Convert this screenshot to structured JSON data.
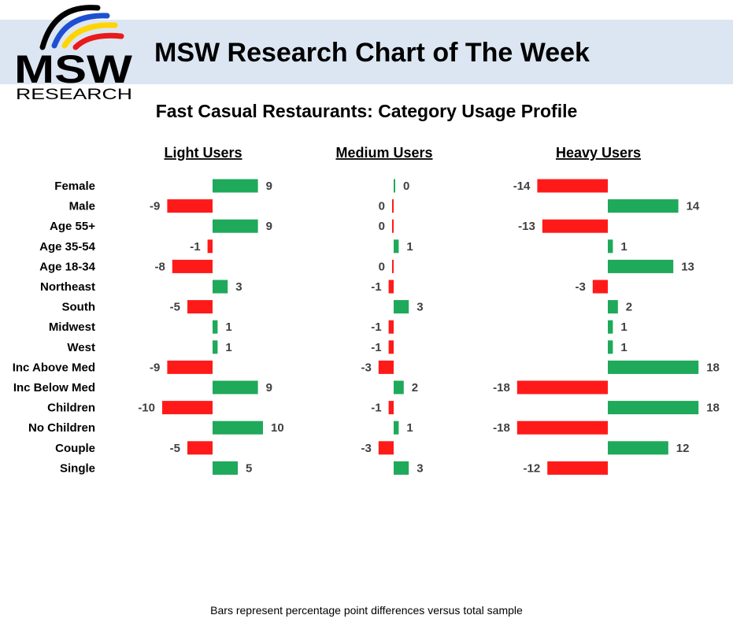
{
  "header": {
    "title": "MSW Research Chart of The Week",
    "logo_text": "MSW",
    "logo_subtext": "RESEARCH"
  },
  "footnote": "Bars represent percentage point differences versus total sample",
  "colors": {
    "positive": "#1fa95a",
    "negative": "#ff1a1a",
    "header_band": "#dce6f2"
  },
  "chart_data": {
    "type": "bar",
    "orientation": "horizontal",
    "title": "Fast Casual Restaurants: Category Usage Profile",
    "categories": [
      "Female",
      "Male",
      "Age 55+",
      "Age 35-54",
      "Age 18-34",
      "Northeast",
      "South",
      "Midwest",
      "West",
      "Inc Above Med",
      "Inc Below Med",
      "Children",
      "No Children",
      "Couple",
      "Single"
    ],
    "groups": [
      [
        0,
        1
      ],
      [
        2,
        3,
        4
      ],
      [
        5,
        6,
        7,
        8
      ],
      [
        9,
        10
      ],
      [
        11,
        12
      ],
      [
        13,
        14
      ]
    ],
    "series": [
      {
        "name": "Light Users",
        "values": [
          9,
          -9,
          9,
          -1,
          -8,
          3,
          -5,
          1,
          1,
          -9,
          9,
          -10,
          10,
          -5,
          5
        ]
      },
      {
        "name": "Medium Users",
        "values": [
          0,
          0,
          0,
          1,
          0,
          -1,
          3,
          -1,
          -1,
          -3,
          2,
          -1,
          1,
          -3,
          3
        ]
      },
      {
        "name": "Heavy Users",
        "values": [
          -14,
          14,
          -13,
          1,
          13,
          -3,
          2,
          1,
          1,
          18,
          -18,
          18,
          -18,
          12,
          -12
        ]
      }
    ]
  }
}
